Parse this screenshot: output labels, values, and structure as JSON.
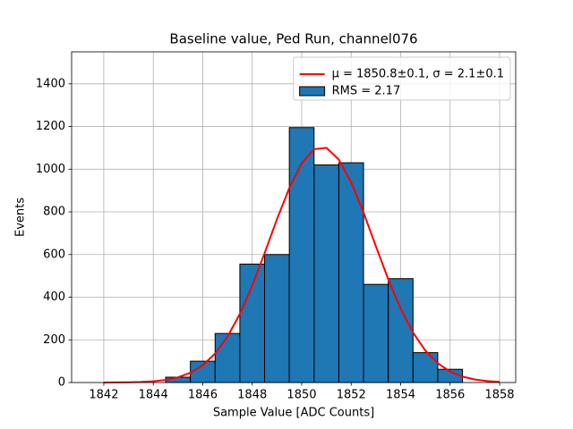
{
  "chart_data": {
    "type": "histogram",
    "title": "Baseline value, Ped Run, channel076",
    "xlabel": "Sample Value [ADC Counts]",
    "ylabel": "Events",
    "bins": [
      1844.5,
      1845.5,
      1846.5,
      1847.5,
      1848.5,
      1849.5,
      1850.5,
      1851.5,
      1852.5,
      1853.5,
      1854.5,
      1855.5,
      1856.5
    ],
    "series": [
      {
        "name": "RMS = 2.17",
        "color": "#1f77b4",
        "edgecolor": "#000000",
        "values": [
          25,
          100,
          230,
          555,
          600,
          1195,
          1020,
          1030,
          460,
          487,
          140,
          62
        ]
      }
    ],
    "lines": [
      {
        "name": "μ = 1850.8±0.1, σ = 2.1±0.1",
        "color": "#ff0000",
        "x": [
          1842,
          1842.5,
          1843,
          1843.5,
          1844,
          1844.5,
          1845,
          1845.5,
          1846,
          1846.5,
          1847,
          1847.5,
          1848,
          1848.5,
          1849,
          1849.5,
          1850,
          1850.5,
          1851,
          1851.5,
          1852,
          1852.5,
          1853,
          1853.5,
          1854,
          1854.5,
          1855,
          1855.5,
          1856,
          1856.5,
          1857,
          1857.5,
          1858
        ],
        "values": [
          0.2,
          0.4,
          1.1,
          2.6,
          5.8,
          12.3,
          24.4,
          45.7,
          81.1,
          135.8,
          215,
          321.4,
          454.3,
          606.6,
          765.3,
          912.3,
          1027.7,
          1093.8,
          1100,
          1045.2,
          938.5,
          796.3,
          638.4,
          483.5,
          346.1,
          234.1,
          149.5,
          90.3,
          51.5,
          27.8,
          14.1,
          6.8,
          3.1
        ]
      }
    ],
    "xlim": [
      1840.7,
      1858.65
    ],
    "ylim": [
      0,
      1550
    ],
    "xticks": [
      1842,
      1844,
      1846,
      1848,
      1850,
      1852,
      1854,
      1856,
      1858
    ],
    "yticks": [
      0,
      200,
      400,
      600,
      800,
      1000,
      1200,
      1400
    ],
    "grid": true,
    "legend": "upper right"
  }
}
